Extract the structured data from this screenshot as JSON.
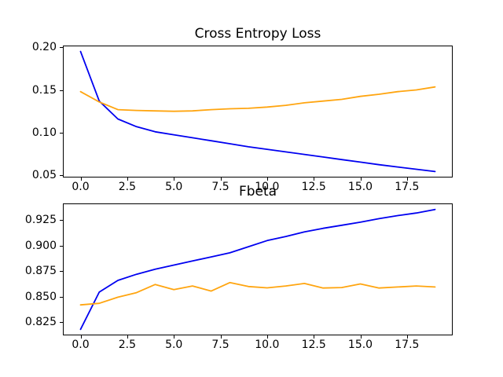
{
  "figure": {
    "background": "#ffffff"
  },
  "chart_data": [
    {
      "type": "line",
      "title": "Cross Entropy Loss",
      "x": [
        0,
        1,
        2,
        3,
        4,
        5,
        6,
        7,
        8,
        9,
        10,
        11,
        12,
        13,
        14,
        15,
        16,
        17,
        18,
        19
      ],
      "series": [
        {
          "name": "blue",
          "color": "#0000f0",
          "values": [
            0.195,
            0.137,
            0.116,
            0.107,
            0.101,
            0.0975,
            0.094,
            0.0905,
            0.087,
            0.0835,
            0.0805,
            0.0775,
            0.0745,
            0.0715,
            0.0685,
            0.0655,
            0.0625,
            0.0598,
            0.0572,
            0.0545
          ]
        },
        {
          "name": "orange",
          "color": "#ffa510",
          "values": [
            0.148,
            0.136,
            0.127,
            0.126,
            0.1255,
            0.125,
            0.1255,
            0.127,
            0.128,
            0.1285,
            0.13,
            0.132,
            0.135,
            0.137,
            0.139,
            0.1425,
            0.145,
            0.148,
            0.15,
            0.1535
          ]
        }
      ],
      "xticks": [
        0,
        2.5,
        5,
        7.5,
        10,
        12.5,
        15,
        17.5
      ],
      "xtick_labels": [
        "0.0",
        "2.5",
        "5.0",
        "7.5",
        "10.0",
        "12.5",
        "15.0",
        "17.5"
      ],
      "yticks": [
        0.05,
        0.1,
        0.15,
        0.2
      ],
      "ytick_labels": [
        "0.05",
        "0.10",
        "0.15",
        "0.20"
      ],
      "xlim": [
        -0.95,
        19.95
      ],
      "ylim": [
        0.0475,
        0.202
      ],
      "grid": false,
      "legend_position": "none"
    },
    {
      "type": "line",
      "title": "Fbeta",
      "x": [
        0,
        1,
        2,
        3,
        4,
        5,
        6,
        7,
        8,
        9,
        10,
        11,
        12,
        13,
        14,
        15,
        16,
        17,
        18,
        19
      ],
      "series": [
        {
          "name": "blue",
          "color": "#0000f0",
          "values": [
            0.818,
            0.8545,
            0.866,
            0.872,
            0.877,
            0.881,
            0.885,
            0.889,
            0.893,
            0.899,
            0.905,
            0.909,
            0.9135,
            0.917,
            0.92,
            0.923,
            0.9265,
            0.9295,
            0.932,
            0.9355
          ]
        },
        {
          "name": "orange",
          "color": "#ffa510",
          "values": [
            0.842,
            0.8435,
            0.8495,
            0.854,
            0.862,
            0.857,
            0.8605,
            0.8555,
            0.8638,
            0.86,
            0.8587,
            0.8605,
            0.863,
            0.8585,
            0.859,
            0.8625,
            0.8585,
            0.8595,
            0.8605,
            0.8595
          ]
        }
      ],
      "xticks": [
        0,
        2.5,
        5,
        7.5,
        10,
        12.5,
        15,
        17.5
      ],
      "xtick_labels": [
        "0.0",
        "2.5",
        "5.0",
        "7.5",
        "10.0",
        "12.5",
        "15.0",
        "17.5"
      ],
      "yticks": [
        0.825,
        0.85,
        0.875,
        0.9,
        0.925
      ],
      "ytick_labels": [
        "0.825",
        "0.850",
        "0.875",
        "0.900",
        "0.925"
      ],
      "xlim": [
        -0.95,
        19.95
      ],
      "ylim": [
        0.8121,
        0.9414
      ],
      "grid": false,
      "legend_position": "none"
    }
  ]
}
